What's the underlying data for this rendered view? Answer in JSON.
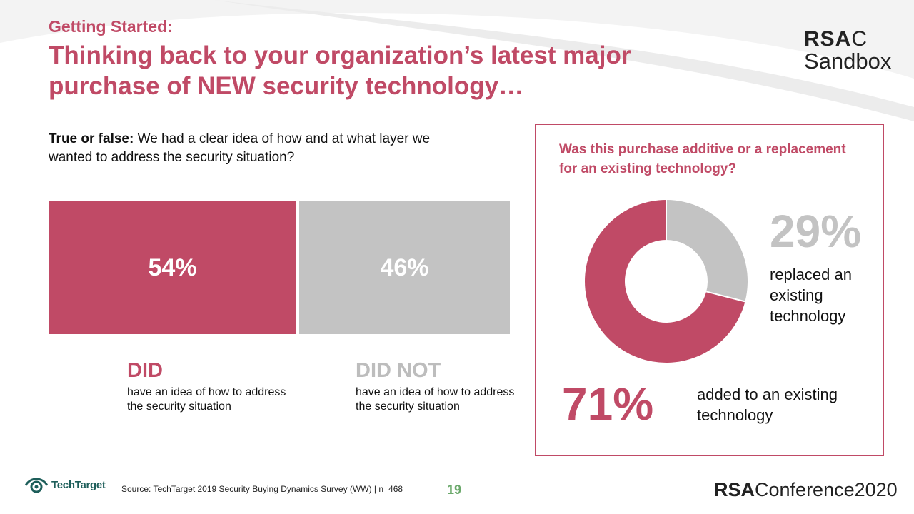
{
  "header": {
    "kicker": "Getting Started:",
    "title": "Thinking back to your organization’s latest major purchase of NEW security technology…"
  },
  "brand": {
    "rsac_bold": "RSA",
    "rsac_tail": "C",
    "sandbox": "Sandbox",
    "conference_bold": "RSA",
    "conference_tail": "Conference2020",
    "techtarget": "TechTarget"
  },
  "question1": {
    "lead": "True or false:",
    "text": "We had a clear idea of how and at what layer we wanted to address the security situation?"
  },
  "question2": {
    "text": "Was this purchase additive or a replacement for an existing technology?"
  },
  "labels": {
    "did_big": "DID",
    "did_desc": "have an idea of how to address the security situation",
    "didnot_big": "DID NOT",
    "didnot_desc": "have an idea of how to address the security situation",
    "replaced_pct": "29%",
    "replaced_desc": "replaced an existing technology",
    "added_pct": "71%",
    "added_desc": "added to an existing technology"
  },
  "footer": {
    "source": "Source: TechTarget 2019 Security Buying Dynamics Survey (WW)  | n=468",
    "page": "19"
  },
  "colors": {
    "accent": "#c04a66",
    "neutral": "#c3c3c3",
    "teal": "#1d5e5a",
    "page_green": "#6aa86a"
  },
  "chart_data": [
    {
      "type": "bar",
      "title": "True or false: We had a clear idea of how and at what layer we wanted to address the security situation?",
      "categories": [
        "DID",
        "DID NOT"
      ],
      "values": [
        54,
        46
      ],
      "value_labels": [
        "54%",
        "46%"
      ],
      "xlabel": "",
      "ylabel": "",
      "ylim": [
        0,
        100
      ]
    },
    {
      "type": "pie",
      "title": "Was this purchase additive or a replacement for an existing technology?",
      "categories": [
        "added to an existing technology",
        "replaced an existing technology"
      ],
      "values": [
        71,
        29
      ],
      "value_labels": [
        "71%",
        "29%"
      ]
    }
  ]
}
